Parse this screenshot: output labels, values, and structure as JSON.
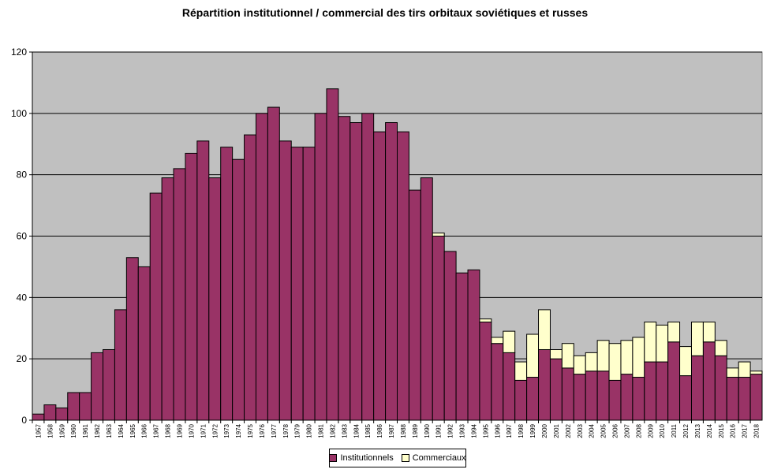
{
  "chart_data": {
    "type": "bar",
    "stacked": true,
    "title": "Répartition institutionnel / commercial des tirs orbitaux soviétiques et russes",
    "xlabel": "",
    "ylabel": "",
    "ylim": [
      0,
      120
    ],
    "yticks": [
      0,
      20,
      40,
      60,
      80,
      100,
      120
    ],
    "grid": true,
    "legend_position": "bottom",
    "plot_background": "#c0c0c0",
    "categories": [
      "1957",
      "1958",
      "1959",
      "1960",
      "1961",
      "1962",
      "1963",
      "1964",
      "1965",
      "1966",
      "1967",
      "1968",
      "1969",
      "1970",
      "1971",
      "1972",
      "1973",
      "1974",
      "1975",
      "1976",
      "1977",
      "1978",
      "1979",
      "1980",
      "1981",
      "1982",
      "1983",
      "1984",
      "1985",
      "1986",
      "1987",
      "1988",
      "1989",
      "1990",
      "1991",
      "1992",
      "1993",
      "1994",
      "1995",
      "1996",
      "1997",
      "1998",
      "1999",
      "2000",
      "2001",
      "2002",
      "2003",
      "2004",
      "2005",
      "2006",
      "2007",
      "2008",
      "2009",
      "2010",
      "2011",
      "2012",
      "2013",
      "2014",
      "2015",
      "2016",
      "2017",
      "2018"
    ],
    "series": [
      {
        "name": "Institutionnels",
        "color": "#993366",
        "values": [
          2,
          5,
          4,
          9,
          9,
          22,
          23,
          36,
          53,
          50,
          74,
          79,
          82,
          87,
          91,
          79,
          89,
          85,
          93,
          100,
          102,
          91,
          89,
          89,
          100,
          108,
          99,
          97,
          100,
          94,
          97,
          94,
          75,
          79,
          60,
          55,
          48,
          49,
          32,
          25,
          22,
          13,
          14,
          23,
          20,
          17,
          15,
          16,
          16,
          13,
          15,
          14,
          19,
          19,
          25.5,
          14.5,
          21,
          25.5,
          21,
          14,
          14,
          15
        ]
      },
      {
        "name": "Commerciaux",
        "color": "#ffffcc",
        "values": [
          0,
          0,
          0,
          0,
          0,
          0,
          0,
          0,
          0,
          0,
          0,
          0,
          0,
          0,
          0,
          0,
          0,
          0,
          0,
          0,
          0,
          0,
          0,
          0,
          0,
          0,
          0,
          0,
          0,
          0,
          0,
          0,
          0,
          0,
          1,
          0,
          0,
          0,
          1,
          2,
          7,
          6,
          14,
          13,
          3,
          8,
          6,
          6,
          10,
          12,
          11,
          13,
          13,
          12,
          6.5,
          9.5,
          11,
          6.5,
          5,
          3,
          5,
          1
        ]
      }
    ]
  }
}
